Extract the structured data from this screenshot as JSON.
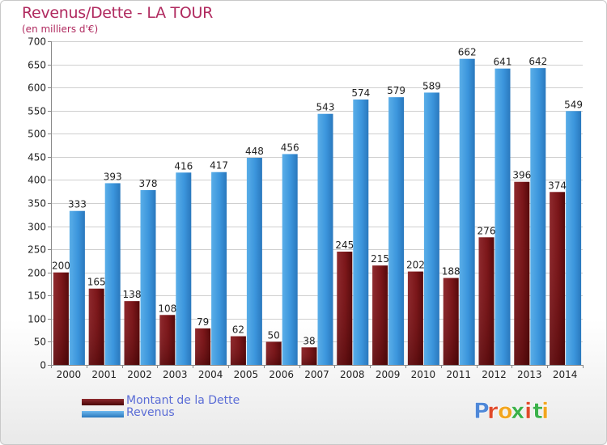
{
  "title": "Revenus/Dette - LA TOUR",
  "subtitle": "(en milliers d'€)",
  "colors": {
    "title": "#b02a5f",
    "dette": "#7a1518",
    "revenus": "#3b95dc",
    "legend_text": "#5a6cd6",
    "grid": "#cccccc"
  },
  "chart_data": {
    "type": "bar",
    "title": "Revenus/Dette - LA TOUR",
    "subtitle": "(en milliers d'€)",
    "categories": [
      "2000",
      "2001",
      "2002",
      "2003",
      "2004",
      "2005",
      "2006",
      "2007",
      "2008",
      "2009",
      "2010",
      "2011",
      "2012",
      "2013",
      "2014"
    ],
    "series": [
      {
        "name": "Montant de la Dette",
        "values": [
          200,
          165,
          138,
          108,
          79,
          62,
          50,
          38,
          245,
          215,
          202,
          188,
          276,
          396,
          374
        ]
      },
      {
        "name": "Revenus",
        "values": [
          333,
          393,
          378,
          416,
          417,
          448,
          456,
          543,
          574,
          579,
          589,
          662,
          641,
          642,
          549
        ]
      }
    ],
    "ylim": [
      0,
      700
    ],
    "yticks": [
      0,
      50,
      100,
      150,
      200,
      250,
      300,
      350,
      400,
      450,
      500,
      550,
      600,
      650,
      700
    ],
    "grid": true,
    "legend_position": "bottom-left"
  },
  "legend": {
    "dette_label": "Montant de la Dette",
    "revenus_label": "Revenus"
  },
  "logo_text": "Proxiti"
}
